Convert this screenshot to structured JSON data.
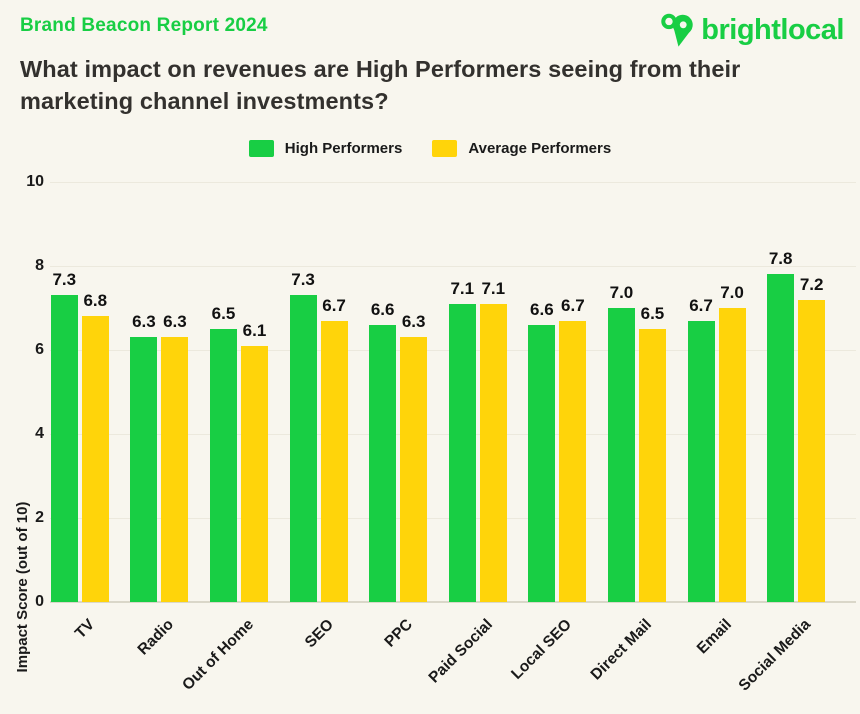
{
  "header": {
    "eyebrow": "Brand Beacon Report 2024",
    "title": "What impact on revenues are High Performers seeing from their marketing channel investments?",
    "logo_text": "brightlocal"
  },
  "colors": {
    "green": "#18CE44",
    "yellow": "#FFD40A",
    "background": "#F8F6EE",
    "heading": "#33312E",
    "label": "#111111",
    "gridline": "#ECE9DD"
  },
  "chart_data": {
    "type": "bar",
    "categories": [
      "TV",
      "Radio",
      "Out of Home",
      "SEO",
      "PPC",
      "Paid Social",
      "Local SEO",
      "Direct Mail",
      "Email",
      "Social Media"
    ],
    "series": [
      {
        "name": "High Performers",
        "color": "#18CE44",
        "values": [
          7.3,
          6.3,
          6.5,
          7.3,
          6.6,
          7.1,
          6.6,
          7.0,
          6.7,
          7.8
        ]
      },
      {
        "name": "Average Performers",
        "color": "#FFD40A",
        "values": [
          6.8,
          6.3,
          6.1,
          6.7,
          6.3,
          7.1,
          6.7,
          6.5,
          7.0,
          7.2
        ]
      }
    ],
    "title": "What impact on revenues are High Performers seeing from their marketing channel investments?",
    "xlabel": "",
    "ylabel": "Impact Score (out of 10)",
    "ylim": [
      0,
      10
    ],
    "yticks": [
      0,
      2,
      4,
      6,
      8,
      10
    ],
    "grid": true,
    "legend_position": "top-center"
  }
}
